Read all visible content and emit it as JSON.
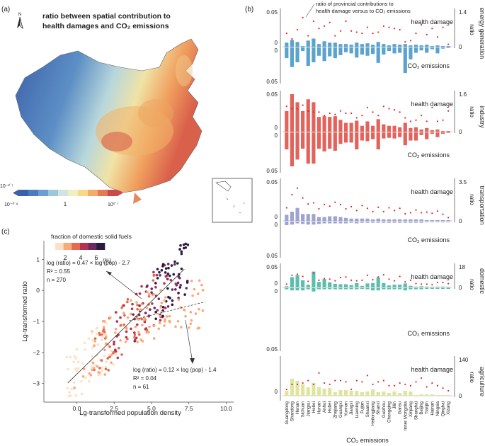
{
  "panel_a": {
    "label": "(a)",
    "title_line1": "ratio between spatial contribution to",
    "title_line2": "health damages and CO₂ emissions",
    "north": "N",
    "colorbar": {
      "colors": [
        "#3b5fa8",
        "#4a7cc0",
        "#6a9fd0",
        "#9cc6de",
        "#cfe4df",
        "#eef0c2",
        "#f7d98a",
        "#f2ad6a",
        "#e57a56",
        "#c94a4a"
      ],
      "tick_low_top": "10⁻²˙⁷",
      "tick_low": "10⁻⁰˙⁹",
      "tick_mid": "1",
      "tick_high": "10⁰˙⁷"
    }
  },
  "panel_b": {
    "label": "(b)",
    "annotation": "ratio of provincial contributions to health damage versus to CO₂ emissions",
    "annotation_line1": "ratio of provincial contributions to",
    "annotation_line2": "health damage versus to CO₂ emissions",
    "top_label": "health damage",
    "bottom_label": "CO₂ emissions",
    "ratio_label": "ratio",
    "provinces": [
      "Guangdong",
      "Shandong",
      "Henan",
      "Sichuan",
      "Jiangsu",
      "Hebei",
      "Hunan",
      "Anhui",
      "Hubei",
      "Zhejiang",
      "Guangxi",
      "Yunnan",
      "Jiangxi",
      "Liaoning",
      "Fujian",
      "Shaanxi",
      "Heilongjiang",
      "Shanxi",
      "Guizhou",
      "Chongqing",
      "Jilin",
      "Gansu",
      "Inner Mongolia",
      "Xinjiang",
      "Shanghai",
      "Beijing",
      "Tianjin",
      "Hainan",
      "Ningxia",
      "Qinghai",
      "Xizang"
    ]
  },
  "chart_data": [
    {
      "type": "bar",
      "name": "energy generation",
      "color": "#5aa3cd",
      "left_top": "0.05",
      "left_zero_top": "0",
      "left_zero_bottom": "0",
      "left_bottom": "0.05",
      "right_top": "1.4",
      "right_zero": "0",
      "health": [
        0.006,
        0.01,
        0.007,
        0.001,
        0.009,
        0.012,
        0.004,
        0.008,
        0.006,
        0.006,
        0.004,
        0.004,
        0.003,
        0.006,
        0.004,
        0.005,
        0.003,
        0.007,
        0.004,
        0.002,
        0.004,
        0.003,
        0.004,
        0.002,
        0.003,
        0.002,
        0.003,
        0.001,
        0.002,
        0.001,
        0.0005
      ],
      "co2": [
        0.018,
        0.033,
        0.025,
        0.006,
        0.031,
        0.025,
        0.014,
        0.023,
        0.015,
        0.018,
        0.013,
        0.008,
        0.01,
        0.017,
        0.012,
        0.014,
        0.011,
        0.026,
        0.012,
        0.006,
        0.01,
        0.009,
        0.043,
        0.02,
        0.009,
        0.005,
        0.009,
        0.003,
        0.01,
        0.002,
        0.001
      ],
      "ratio": [
        0.55,
        0.32,
        0.7,
        1.2,
        0.45,
        1.05,
        0.75,
        0.85,
        1.0,
        0.45,
        0.65,
        1.05,
        0.65,
        0.6,
        0.55,
        0.8,
        0.55,
        0.6,
        0.85,
        0.8,
        0.75,
        0.7,
        0.2,
        0.25,
        0.55,
        0.9,
        0.5,
        0.75,
        0.4,
        0.8,
        0.1
      ]
    },
    {
      "type": "bar",
      "name": "industry",
      "color": "#e3625a",
      "left_top": "0.05",
      "left_zero_top": "0",
      "left_zero_bottom": "0",
      "left_bottom": "0.05",
      "right_top": "1.6",
      "right_zero": "0",
      "health": [
        0.028,
        0.051,
        0.04,
        0.028,
        0.044,
        0.04,
        0.02,
        0.021,
        0.02,
        0.021,
        0.016,
        0.012,
        0.012,
        0.015,
        0.008,
        0.014,
        0.008,
        0.017,
        0.01,
        0.008,
        0.008,
        0.006,
        0.012,
        0.005,
        0.006,
        0.003,
        0.005,
        0.002,
        0.003,
        0.001,
        0.0005
      ],
      "co2": [
        0.025,
        0.05,
        0.04,
        0.024,
        0.046,
        0.046,
        0.024,
        0.028,
        0.024,
        0.027,
        0.017,
        0.015,
        0.015,
        0.025,
        0.012,
        0.013,
        0.01,
        0.025,
        0.009,
        0.008,
        0.009,
        0.007,
        0.019,
        0.012,
        0.012,
        0.004,
        0.01,
        0.002,
        0.007,
        0.002,
        0.0005
      ],
      "ratio": [
        1.1,
        1.0,
        1.0,
        1.15,
        0.9,
        0.85,
        0.85,
        0.7,
        0.8,
        0.75,
        0.9,
        0.8,
        0.8,
        0.6,
        0.7,
        1.05,
        0.85,
        0.7,
        1.1,
        1.0,
        0.95,
        0.85,
        0.6,
        0.45,
        0.5,
        0.7,
        0.45,
        1.05,
        0.45,
        0.5,
        0.9
      ]
    },
    {
      "type": "bar",
      "name": "transportation",
      "color": "#9ea3cf",
      "left_top": "0.05",
      "left_zero_top": "0",
      "left_zero_bottom": "0",
      "left_bottom": "0.05",
      "right_top": "3.5",
      "right_zero": "0",
      "health": [
        0.008,
        0.012,
        0.017,
        0.009,
        0.009,
        0.009,
        0.005,
        0.005,
        0.006,
        0.006,
        0.005,
        0.004,
        0.003,
        0.003,
        0.003,
        0.003,
        0.002,
        0.003,
        0.002,
        0.002,
        0.002,
        0.002,
        0.002,
        0.002,
        0.002,
        0.002,
        0.001,
        0.001,
        0.001,
        0.001,
        0.0003
      ],
      "co2": [
        0.006,
        0.005,
        0.003,
        0.004,
        0.005,
        0.005,
        0.004,
        0.003,
        0.003,
        0.003,
        0.003,
        0.003,
        0.002,
        0.003,
        0.002,
        0.002,
        0.002,
        0.002,
        0.002,
        0.002,
        0.002,
        0.002,
        0.002,
        0.002,
        0.002,
        0.002,
        0.001,
        0.001,
        0.001,
        0.001,
        0.0003
      ],
      "ratio": [
        1.2,
        2.4,
        3.0,
        2.1,
        1.55,
        1.65,
        1.1,
        1.5,
        1.35,
        1.7,
        1.5,
        1.1,
        1.3,
        0.95,
        1.4,
        1.15,
        0.85,
        1.25,
        0.85,
        1.2,
        0.95,
        1.15,
        0.65,
        0.75,
        1.0,
        0.75,
        0.8,
        0.7,
        0.9,
        0.6,
        0.3
      ]
    },
    {
      "type": "bar",
      "name": "domestic",
      "color": "#5bbfae",
      "left_top": "0.05",
      "left_zero_top": "0",
      "left_zero_bottom": "0",
      "left_bottom": "0.05",
      "right_top": "18",
      "right_zero": "0",
      "health": [
        0.003,
        0.026,
        0.031,
        0.018,
        0.007,
        0.04,
        0.014,
        0.021,
        0.013,
        0.009,
        0.008,
        0.008,
        0.006,
        0.011,
        0.004,
        0.01,
        0.011,
        0.025,
        0.011,
        0.005,
        0.007,
        0.007,
        0.01,
        0.004,
        0.002,
        0.003,
        0.002,
        0.001,
        0.002,
        0.002,
        0.001
      ],
      "co2": [
        0.001,
        0.002,
        0.002,
        0.002,
        0.001,
        0.003,
        0.001,
        0.001,
        0.001,
        0.001,
        0.001,
        0.001,
        0.001,
        0.001,
        0.0005,
        0.001,
        0.002,
        0.002,
        0.001,
        0.001,
        0.001,
        0.001,
        0.002,
        0.001,
        0.001,
        0.001,
        0.0005,
        0.0003,
        0.0005,
        0.0005,
        0.0003
      ],
      "ratio": [
        3.0,
        11.0,
        12.0,
        10.0,
        5.5,
        13.0,
        6.5,
        8.0,
        7.5,
        6.0,
        9.0,
        9.5,
        6.5,
        6.0,
        6.5,
        11.0,
        7.0,
        9.5,
        11.5,
        7.5,
        6.0,
        10.0,
        5.0,
        6.5,
        3.5,
        3.0,
        3.0,
        2.5,
        4.5,
        4.5,
        3.5
      ]
    },
    {
      "type": "bar",
      "name": "agriculture",
      "color": "#dfe59e",
      "left_top": "",
      "left_zero_top": "0",
      "left_zero_bottom": "",
      "left_bottom": "",
      "right_top": "140",
      "right_zero": "0",
      "health": [
        0.007,
        0.024,
        0.021,
        0.016,
        0.012,
        0.018,
        0.012,
        0.01,
        0.011,
        0.005,
        0.008,
        0.008,
        0.007,
        0.007,
        0.005,
        0.006,
        0.009,
        0.005,
        0.006,
        0.004,
        0.006,
        0.004,
        0.007,
        0.006,
        0.001,
        0.002,
        0.002,
        0.002,
        0.001,
        0.001,
        0.001
      ],
      "co2": [],
      "ratio": [
        25,
        45,
        45,
        50,
        60,
        45,
        90,
        50,
        45,
        60,
        60,
        55,
        25,
        60,
        55,
        80,
        45,
        55,
        60,
        40,
        40,
        50,
        45,
        40,
        55,
        70,
        35,
        50,
        40,
        30,
        20
      ]
    },
    {
      "type": "scatter",
      "name": "panel c",
      "label": "(c)",
      "legend_title": "fraction of domestic solid fuels",
      "legend_ticks": [
        "2",
        "4",
        "6"
      ],
      "legend_unit": "(%)",
      "legend_colors": [
        "#fde0c5",
        "#f8a97a",
        "#e8674f",
        "#b3334f",
        "#6c2a5e",
        "#2a1a3e"
      ],
      "xlabel": "Lg-transformed population density",
      "ylabel": "Lg-transformed ratio",
      "xlim": [
        -2.2,
        10.5
      ],
      "ylim": [
        -3.6,
        1.6
      ],
      "xticks": [
        "0.0",
        "2.5",
        "5.0",
        "7.5",
        "10.0"
      ],
      "yticks": [
        "1",
        "0",
        "−1",
        "−2",
        "−3"
      ],
      "fit1": {
        "text1": "log (ratio) = 0.47 × log (pop) - 2.7",
        "text2": "R² = 0.55",
        "text3": "n = 270",
        "slope": 0.47,
        "intercept": -2.7,
        "xrange": [
          -0.6,
          7.2
        ]
      },
      "fit2": {
        "text1": "log (ratio) = 0.12 × log (pop) - 1.4",
        "text2": "R² = 0.04",
        "text3": "n = 61",
        "slope": 0.12,
        "intercept": -1.4,
        "xrange": [
          3.5,
          8.6
        ]
      }
    }
  ]
}
